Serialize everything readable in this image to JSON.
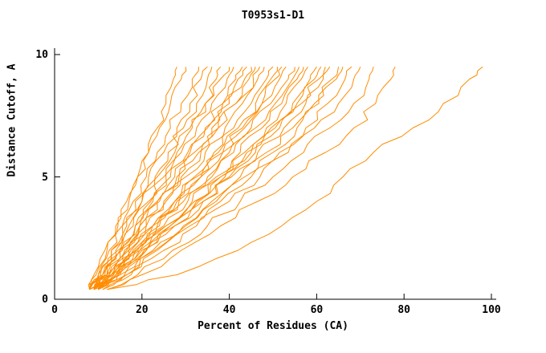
{
  "chart_data": {
    "type": "line",
    "title": "T0953s1-D1",
    "xlabel": "Percent of Residues (CA)",
    "ylabel": "Distance Cutoff, A",
    "xlim": [
      0,
      100
    ],
    "ylim": [
      0,
      10
    ],
    "xticks": [
      0,
      20,
      40,
      60,
      80,
      100
    ],
    "yticks": [
      0,
      5,
      10
    ],
    "grid": false,
    "legend": false,
    "background_color": "#ffffff",
    "line_color": "#ff8c00",
    "axis_color": "#000000",
    "y": [
      0.4,
      1,
      2,
      3,
      4,
      5,
      6,
      7,
      8,
      9,
      9.5
    ],
    "series": [
      {
        "x": [
          8,
          9.5,
          12,
          14.5,
          17,
          19,
          21.5,
          23.5,
          25.5,
          27.2,
          28
        ]
      },
      {
        "x": [
          8,
          9,
          11.5,
          14,
          16.5,
          19,
          21.5,
          24,
          26.5,
          29,
          30
        ]
      },
      {
        "x": [
          9,
          10.5,
          13,
          15.5,
          18,
          21,
          23.5,
          26.5,
          29,
          31.5,
          33
        ]
      },
      {
        "x": [
          8,
          10,
          12.5,
          15.5,
          18.5,
          21.5,
          25,
          28,
          31,
          33.5,
          35
        ]
      },
      {
        "x": [
          9,
          11,
          14,
          17,
          20,
          23,
          26,
          29.5,
          32.5,
          35,
          36
        ]
      },
      {
        "x": [
          10,
          12,
          15,
          18,
          21.5,
          25,
          28,
          31.5,
          34.5,
          37,
          38
        ]
      },
      {
        "x": [
          8,
          10,
          13,
          16.5,
          20,
          23.5,
          27.5,
          31,
          34.5,
          38,
          40
        ]
      },
      {
        "x": [
          9,
          11.5,
          15,
          18.5,
          22,
          25.5,
          29,
          32.5,
          36,
          39.5,
          41
        ]
      },
      {
        "x": [
          10,
          12.5,
          16,
          19.5,
          23.5,
          27.5,
          31,
          35,
          38.5,
          41.5,
          43
        ]
      },
      {
        "x": [
          8,
          11,
          14.5,
          18.5,
          22.5,
          26.5,
          30.5,
          34.5,
          38.5,
          42,
          44
        ]
      },
      {
        "x": [
          9,
          12,
          15.5,
          19.5,
          23.5,
          28,
          32,
          36,
          40,
          43.5,
          45
        ]
      },
      {
        "x": [
          10,
          13,
          17,
          21,
          25,
          29,
          33.5,
          37.5,
          41.5,
          44.5,
          46
        ]
      },
      {
        "x": [
          8,
          11,
          15,
          19.5,
          24,
          28.5,
          33,
          37.5,
          41.5,
          45.5,
          47
        ]
      },
      {
        "x": [
          9,
          12.5,
          16.5,
          21,
          25.5,
          30,
          34.5,
          39,
          43,
          46.5,
          48
        ]
      },
      {
        "x": [
          10,
          13.5,
          18,
          22.5,
          27.5,
          32,
          36.5,
          41,
          45,
          48.5,
          50
        ]
      },
      {
        "x": [
          9,
          13,
          17.5,
          22.5,
          27.5,
          32.5,
          37.5,
          42,
          46,
          49.5,
          51
        ]
      },
      {
        "x": [
          10,
          14,
          18.5,
          23.5,
          28.5,
          33.5,
          38.5,
          43,
          47.5,
          50.5,
          52
        ]
      },
      {
        "x": [
          8,
          12,
          17,
          22.5,
          28,
          33.5,
          38.5,
          43.5,
          47.5,
          51.5,
          53
        ]
      },
      {
        "x": [
          9,
          13.5,
          18.5,
          24,
          29.5,
          35,
          40,
          45,
          49.5,
          53.5,
          55
        ]
      },
      {
        "x": [
          10,
          14.5,
          19.5,
          25,
          30.5,
          36,
          41,
          46,
          50.5,
          54.5,
          56
        ]
      },
      {
        "x": [
          9,
          14,
          19.5,
          25.5,
          31.5,
          37,
          42.5,
          47.5,
          52,
          55.5,
          57
        ]
      },
      {
        "x": [
          10,
          15,
          20.5,
          26.5,
          32.5,
          38,
          43.5,
          48.5,
          53,
          56.5,
          58
        ]
      },
      {
        "x": [
          8,
          13,
          19,
          25.5,
          32,
          38,
          44,
          49.5,
          54.5,
          58.5,
          60
        ]
      },
      {
        "x": [
          9,
          14,
          20,
          26.5,
          33,
          39,
          45,
          50.5,
          55.5,
          59.5,
          61
        ]
      },
      {
        "x": [
          10,
          15,
          21,
          27.5,
          34,
          40,
          46,
          51.5,
          56.5,
          60.5,
          62
        ]
      },
      {
        "x": [
          9,
          14.5,
          21,
          27.5,
          34,
          40.5,
          46.5,
          52.5,
          57.5,
          61.5,
          63
        ]
      },
      {
        "x": [
          10,
          16,
          22.5,
          29.5,
          36,
          42.5,
          48.5,
          54.5,
          59.5,
          63.5,
          65
        ]
      },
      {
        "x": [
          11,
          16.5,
          23,
          30,
          37,
          43.5,
          50,
          55.5,
          60.5,
          64.5,
          66
        ]
      },
      {
        "x": [
          10,
          16.5,
          23.5,
          31,
          38,
          45,
          51.5,
          57.5,
          62.5,
          66.5,
          68
        ]
      },
      {
        "x": [
          11,
          17.5,
          25,
          32.5,
          40,
          47,
          53.5,
          59.5,
          65,
          68.5,
          70
        ]
      },
      {
        "x": [
          12,
          19,
          27,
          35,
          42.5,
          50,
          57,
          63,
          68.5,
          72,
          73
        ]
      },
      {
        "x": [
          12,
          20,
          29,
          38,
          46.5,
          54.5,
          62,
          68.5,
          73.5,
          77,
          78
        ]
      },
      {
        "x": [
          12,
          28,
          42,
          52,
          60,
          66,
          73,
          82,
          89,
          95,
          98
        ]
      }
    ]
  }
}
